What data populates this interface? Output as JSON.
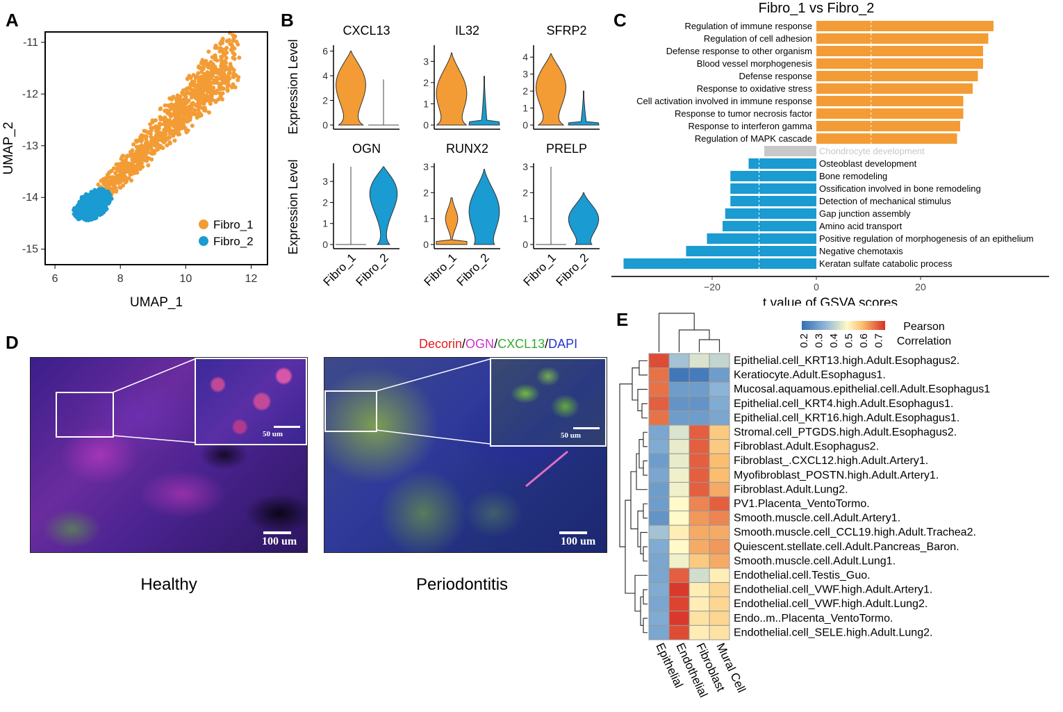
{
  "panels": {
    "A": "A",
    "B": "B",
    "C": "C",
    "D": "D",
    "E": "E"
  },
  "chart_data": [
    {
      "id": "A",
      "type": "scatter",
      "xlabel": "UMAP_1",
      "ylabel": "UMAP_2",
      "xlim": [
        5.7,
        12.5
      ],
      "ylim": [
        -15.3,
        -10.8
      ],
      "xticks": [
        6,
        8,
        10,
        12
      ],
      "yticks": [
        -11,
        -12,
        -13,
        -14,
        -15
      ],
      "legend": [
        {
          "name": "Fibro_1",
          "color": "#f39c35"
        },
        {
          "name": "Fibro_2",
          "color": "#1a9bd1"
        }
      ],
      "clusters": [
        {
          "name": "Fibro_1",
          "color": "#f39c35",
          "count": 1000,
          "region": "diagonal band from (7.3,-14.0) to (11.6,-11.4) widening to top"
        },
        {
          "name": "Fibro_2",
          "color": "#1a9bd1",
          "count": 360,
          "region": "cluster around (7.0,-14.2)"
        }
      ]
    },
    {
      "id": "B",
      "type": "violin",
      "ylabel": "Expression Level",
      "groups": [
        "Fibro_1",
        "Fibro_2"
      ],
      "group_colors": [
        "#f39c35",
        "#1a9bd1"
      ],
      "genes": [
        {
          "name": "CXCL13",
          "yticks": [
            0,
            2,
            4,
            6
          ],
          "ymax": 6.2
        },
        {
          "name": "IL32",
          "yticks": [
            0,
            1,
            2,
            3
          ],
          "ymax": 3.6
        },
        {
          "name": "SFRP2",
          "yticks": [
            0,
            1,
            2,
            3,
            4
          ],
          "ymax": 4.5
        },
        {
          "name": "OGN",
          "yticks": [
            0,
            1,
            2,
            3
          ],
          "ymax": 3.7
        },
        {
          "name": "RUNX2",
          "yticks": [
            0,
            1,
            2,
            3
          ],
          "ymax": 3.0
        },
        {
          "name": "PRELP",
          "yticks": [
            0,
            1,
            2,
            3
          ],
          "ymax": 3.0
        }
      ]
    },
    {
      "id": "C",
      "type": "bar",
      "title": "Fibro_1 vs Fibro_2",
      "xlabel": "t value of GSVA scores",
      "xlim": [
        -37,
        44
      ],
      "xticks": [
        -20,
        0,
        20
      ],
      "bars": [
        {
          "label": "Regulation of immune response",
          "value": 34,
          "color": "#f39c35"
        },
        {
          "label": "Regulation of cell adhesion",
          "value": 33,
          "color": "#f39c35"
        },
        {
          "label": "Defense response to other organism",
          "value": 32,
          "color": "#f39c35"
        },
        {
          "label": "Blood vessel morphogenesis",
          "value": 32,
          "color": "#f39c35"
        },
        {
          "label": "Defense response",
          "value": 31,
          "color": "#f39c35"
        },
        {
          "label": "Response to oxidative stress",
          "value": 30,
          "color": "#f39c35"
        },
        {
          "label": "Cell activation involved in immune response",
          "value": 28.2,
          "color": "#f39c35"
        },
        {
          "label": "Response to tumor necrosis factor",
          "value": 28.2,
          "color": "#f39c35"
        },
        {
          "label": "Response to interferon gamma",
          "value": 27.6,
          "color": "#f39c35"
        },
        {
          "label": "Regulation of MAPK cascade",
          "value": 27.0,
          "color": "#f39c35"
        },
        {
          "label": "Chondrocyte development",
          "value": -10,
          "color": "#c8c8c8"
        },
        {
          "label": "Osteoblast development",
          "value": -13,
          "color": "#1a9bd1"
        },
        {
          "label": "Bone remodeling",
          "value": -16.5,
          "color": "#1a9bd1"
        },
        {
          "label": "Ossification involved in bone remodeling",
          "value": -16.5,
          "color": "#1a9bd1"
        },
        {
          "label": "Detection of mechanical stimulus",
          "value": -16.5,
          "color": "#1a9bd1"
        },
        {
          "label": "Gap junction assembly",
          "value": -17.5,
          "color": "#1a9bd1"
        },
        {
          "label": "Amino acid transport",
          "value": -18,
          "color": "#1a9bd1"
        },
        {
          "label": "Positive regulation of morphogenesis of an epithelium",
          "value": -21,
          "color": "#1a9bd1"
        },
        {
          "label": "Negative chemotaxis",
          "value": -25,
          "color": "#1a9bd1"
        },
        {
          "label": "Keratan sulfate catabolic process",
          "value": -37,
          "color": "#1a9bd1"
        }
      ]
    },
    {
      "id": "E",
      "type": "heatmap",
      "legend_title": "Pearson Correlation",
      "legend_ticks": [
        "0.2",
        "0.3",
        "0.4",
        "0.5",
        "0.6",
        "0.7"
      ],
      "columns": [
        "Epithelial",
        "Endothelial",
        "Fibroblast",
        "Mural Cell"
      ],
      "rows": [
        "Epithelial.cell_KRT13.high.Adult.Esophagus2.",
        "Keratiocyte.Adult.Esophagus1.",
        "Mucosal.aquamous.epithelial.cell.Adult.Esophagus1",
        "Epithelial.cell_KRT4.high.Adult.Esophagus1.",
        "Epithelial.cell_KRT16.high.Adult.Esophagus1.",
        "Stromal.cell_PTGDS.high.Adult.Esophagus2.",
        "Fibroblast.Adult.Esophagus2.",
        "Fibroblast_.CXCL12.high.Adult.Artery1.",
        "Myofibroblast_POSTN.high.Adult.Artery1.",
        "Fibroblast.Adult.Lung2.",
        "PV1.Placenta_VentoTormo.",
        "Smooth.muscle.cell.Adult.Artery1.",
        "Smooth.muscle.cell_CCL19.high.Adult.Trachea2.",
        "Quiescent.stellate.cell.Adult.Pancreas_Baron.",
        "Smooth.muscle.cell.Adult.Lung1.",
        "Endothelial.cell.Testis_Guo.",
        "Endothelial.cell_VWF.high.Adult.Artery1.",
        "Endothelial.cell_VWF.high.Adult.Lung2.",
        "Endo..m..Placenta_VentoTormo.",
        "Endothelial.cell_SELE.high.Adult.Lung2."
      ],
      "values": [
        [
          0.72,
          0.38,
          0.45,
          0.42
        ],
        [
          0.68,
          0.22,
          0.23,
          0.3
        ],
        [
          0.68,
          0.3,
          0.3,
          0.35
        ],
        [
          0.7,
          0.28,
          0.28,
          0.33
        ],
        [
          0.68,
          0.3,
          0.3,
          0.32
        ],
        [
          0.32,
          0.45,
          0.7,
          0.58
        ],
        [
          0.33,
          0.47,
          0.7,
          0.58
        ],
        [
          0.3,
          0.47,
          0.7,
          0.6
        ],
        [
          0.32,
          0.48,
          0.7,
          0.6
        ],
        [
          0.3,
          0.48,
          0.7,
          0.62
        ],
        [
          0.3,
          0.5,
          0.66,
          0.7
        ],
        [
          0.28,
          0.5,
          0.64,
          0.66
        ],
        [
          0.38,
          0.52,
          0.62,
          0.62
        ],
        [
          0.33,
          0.5,
          0.62,
          0.64
        ],
        [
          0.32,
          0.48,
          0.58,
          0.62
        ],
        [
          0.32,
          0.7,
          0.44,
          0.52
        ],
        [
          0.33,
          0.74,
          0.52,
          0.56
        ],
        [
          0.32,
          0.73,
          0.52,
          0.56
        ],
        [
          0.33,
          0.74,
          0.54,
          0.56
        ],
        [
          0.32,
          0.72,
          0.52,
          0.54
        ]
      ]
    }
  ],
  "panel_d": {
    "stain_parts": [
      "Decorin",
      "/",
      "OGN",
      "/",
      "CXCL13",
      "/",
      "DAPI"
    ],
    "stain_colors": [
      "#e41a1c",
      "#000000",
      "#cc33cc",
      "#000000",
      "#33aa33",
      "#000000",
      "#2233cc"
    ],
    "healthy_caption": "Healthy",
    "perio_caption": "Periodontitis",
    "scale_large": "100 um",
    "scale_small": "50 um"
  }
}
